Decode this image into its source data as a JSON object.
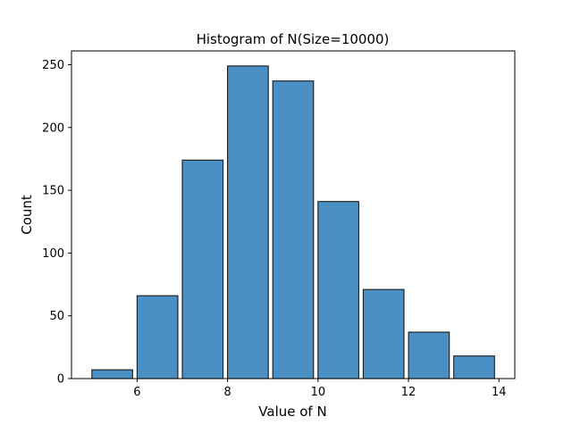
{
  "chart_data": {
    "type": "bar",
    "title": "Histogram of N(Size=10000)",
    "xlabel": "Value of N",
    "ylabel": "Count",
    "bins": [
      {
        "start": 5.0,
        "end": 5.9,
        "count": 7
      },
      {
        "start": 6.0,
        "end": 6.9,
        "count": 66
      },
      {
        "start": 7.0,
        "end": 7.9,
        "count": 174
      },
      {
        "start": 8.0,
        "end": 8.9,
        "count": 249
      },
      {
        "start": 9.0,
        "end": 9.9,
        "count": 237
      },
      {
        "start": 10.0,
        "end": 10.9,
        "count": 141
      },
      {
        "start": 11.0,
        "end": 11.9,
        "count": 71
      },
      {
        "start": 12.0,
        "end": 12.9,
        "count": 37
      },
      {
        "start": 13.0,
        "end": 13.9,
        "count": 18
      }
    ],
    "xlim": [
      4.55,
      14.35
    ],
    "ylim": [
      0,
      261
    ],
    "xticks": [
      6,
      8,
      10,
      12,
      14
    ],
    "yticks": [
      0,
      50,
      100,
      150,
      200,
      250
    ],
    "bar_color": "#4a90c4",
    "edge_color": "#1a1a1a",
    "grid": false,
    "legend": "none"
  }
}
